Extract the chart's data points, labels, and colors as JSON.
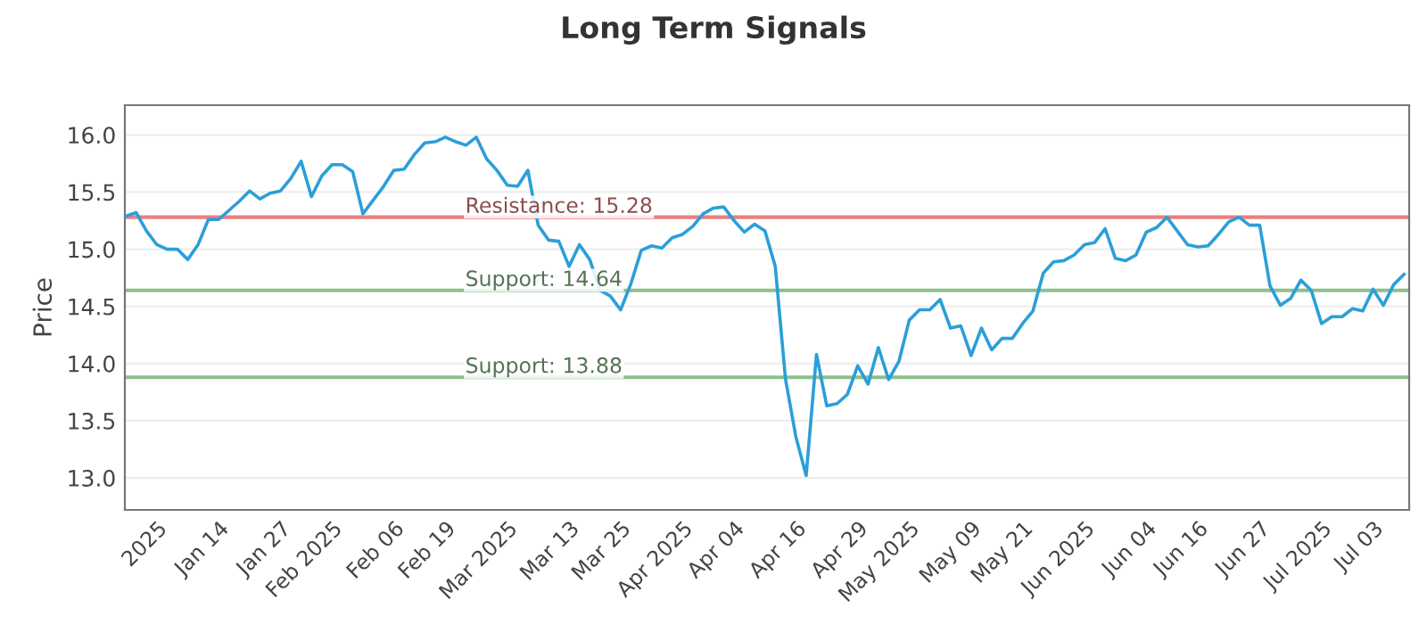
{
  "chart_data": {
    "type": "line",
    "title": "Long Term Signals",
    "ylabel": "Price",
    "categories": [
      null,
      null,
      null,
      "2025",
      null,
      null,
      null,
      null,
      null,
      "Jan 14",
      null,
      null,
      null,
      null,
      null,
      "Jan 27",
      null,
      null,
      null,
      null,
      "Feb 2025",
      null,
      null,
      null,
      null,
      null,
      "Feb 06",
      null,
      null,
      null,
      null,
      "Feb 19",
      null,
      null,
      null,
      null,
      null,
      "Mar 2025",
      null,
      null,
      null,
      null,
      null,
      "Mar 13",
      null,
      null,
      null,
      null,
      "Mar 25",
      null,
      null,
      null,
      null,
      null,
      "Apr 2025",
      null,
      null,
      null,
      null,
      "Apr 04",
      null,
      null,
      null,
      null,
      null,
      "Apr 16",
      null,
      null,
      null,
      null,
      null,
      "Apr 29",
      null,
      null,
      null,
      null,
      "May 2025",
      null,
      null,
      null,
      null,
      null,
      "May 09",
      null,
      null,
      null,
      null,
      "May 21",
      null,
      null,
      null,
      null,
      null,
      "Jun 2025",
      null,
      null,
      null,
      null,
      null,
      "Jun 04",
      null,
      null,
      null,
      null,
      "Jun 16",
      null,
      null,
      null,
      null,
      null,
      "Jun 27",
      null,
      null,
      null,
      null,
      null,
      "Jul 2025",
      null,
      null,
      null,
      null,
      "Jul 03",
      null,
      null,
      null
    ],
    "series": [
      {
        "color": "#2b9fd8",
        "values": [
          15.29,
          15.32,
          15.16,
          15.04,
          15.0,
          15.0,
          14.91,
          15.04,
          15.26,
          15.26,
          15.34,
          15.42,
          15.51,
          15.44,
          15.49,
          15.51,
          15.62,
          15.77,
          15.46,
          15.64,
          15.74,
          15.74,
          15.68,
          15.31,
          15.43,
          15.55,
          15.69,
          15.7,
          15.83,
          15.93,
          15.94,
          15.98,
          15.94,
          15.91,
          15.98,
          15.79,
          15.69,
          15.56,
          15.55,
          15.69,
          15.21,
          15.08,
          15.07,
          14.85,
          15.04,
          14.91,
          14.64,
          14.59,
          14.47,
          14.7,
          14.99,
          15.03,
          15.01,
          15.1,
          15.13,
          15.2,
          15.31,
          15.36,
          15.37,
          15.25,
          15.15,
          15.22,
          15.16,
          14.85,
          13.86,
          13.36,
          13.02,
          14.08,
          13.63,
          13.65,
          13.73,
          13.98,
          13.82,
          14.14,
          13.86,
          14.02,
          14.38,
          14.47,
          14.47,
          14.56,
          14.31,
          14.33,
          14.07,
          14.31,
          14.12,
          14.22,
          14.22,
          14.35,
          14.46,
          14.79,
          14.89,
          14.9,
          14.95,
          15.04,
          15.06,
          15.18,
          14.92,
          14.9,
          14.95,
          15.15,
          15.19,
          15.28,
          15.16,
          15.04,
          15.02,
          15.03,
          15.13,
          15.24,
          15.28,
          15.21,
          15.21,
          14.68,
          14.51,
          14.57,
          14.73,
          14.64,
          14.35,
          14.41,
          14.41,
          14.48,
          14.46,
          14.65,
          14.51,
          14.69,
          14.78
        ]
      }
    ],
    "ylim": [
      12.72,
      16.26
    ],
    "yticks": [
      {
        "value": 13,
        "label": "13.0"
      },
      {
        "value": 13.5,
        "label": "13.5"
      },
      {
        "value": 14,
        "label": "14.0"
      },
      {
        "value": 14.5,
        "label": "14.5"
      },
      {
        "value": 15,
        "label": "15.0"
      },
      {
        "value": 15.5,
        "label": "15.5"
      },
      {
        "value": 16,
        "label": "16.0"
      }
    ],
    "ref_lines": [
      {
        "axis": "y",
        "value": 15.28,
        "label": "Resistance: 15.28",
        "color": "#e88080"
      },
      {
        "axis": "y",
        "value": 14.64,
        "label": "Support: 14.64",
        "color": "#8cc08c"
      },
      {
        "axis": "y",
        "value": 13.88,
        "label": "Support: 13.88",
        "color": "#8cc08c"
      }
    ],
    "grid": "y",
    "marker": "none",
    "line_style": "solid"
  }
}
